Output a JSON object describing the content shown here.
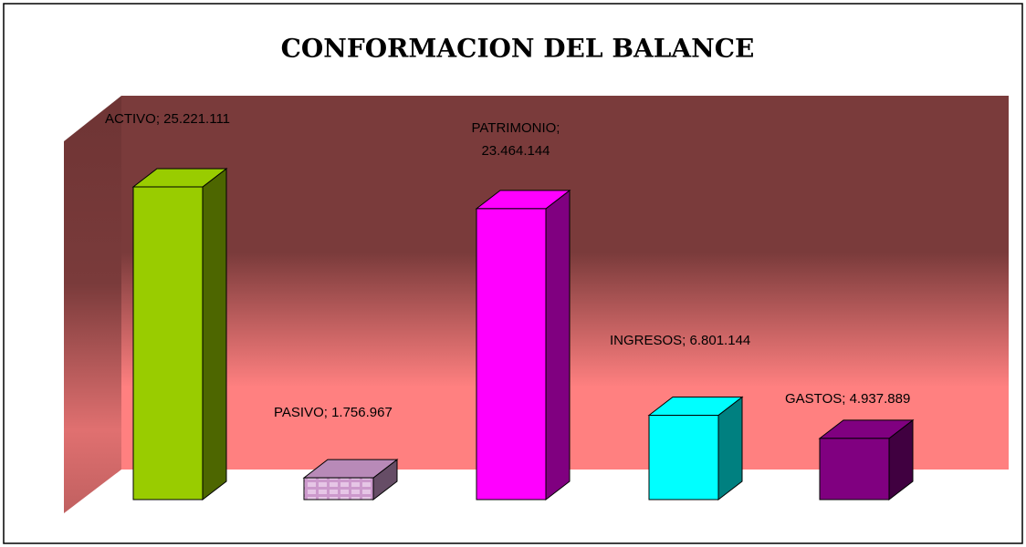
{
  "chart_data": {
    "type": "bar3d",
    "title": "CONFORMACION DEL BALANCE",
    "values": [
      25221111,
      1756967,
      23464144,
      6801144,
      4937889
    ],
    "value_labels": [
      "ACTIVO; 25.221.111",
      "PASIVO; 1.756.967",
      "PATRIMONIO; 23.464.144",
      "INGRESOS; 6.801.144",
      "GASTOS; 4.937.889"
    ],
    "colors": [
      "#99cc00",
      "#cc99cc",
      "#ff00ff",
      "#00ffff",
      "#800080"
    ]
  }
}
